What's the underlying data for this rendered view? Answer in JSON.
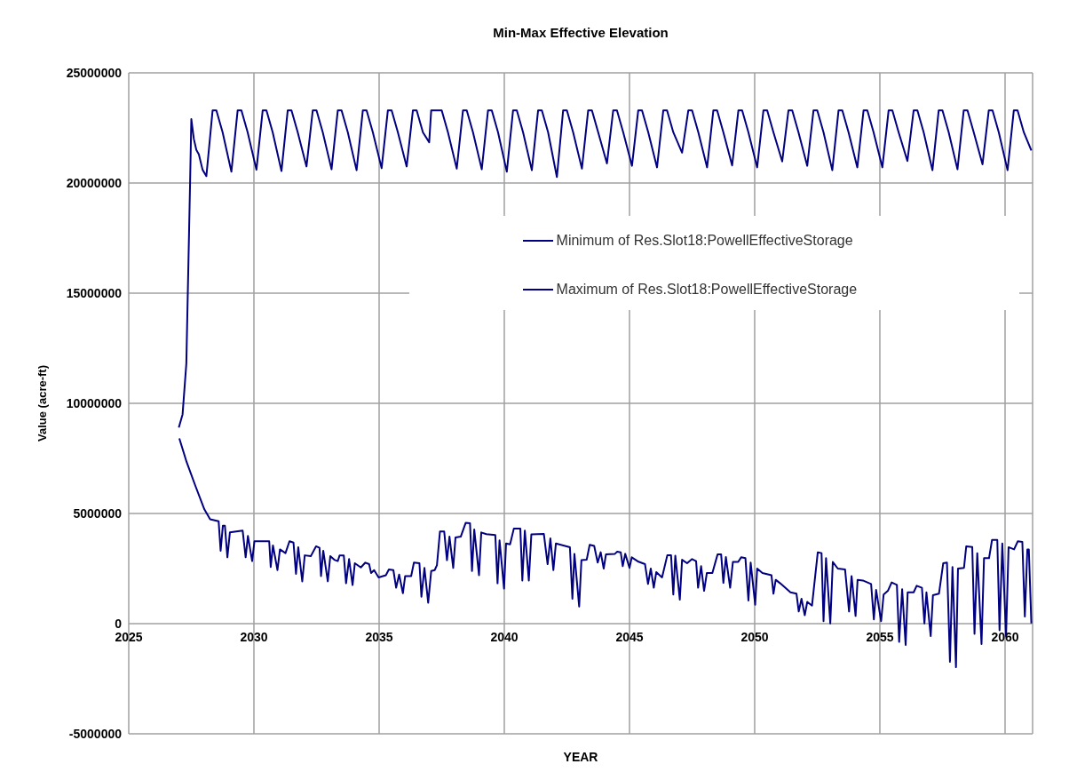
{
  "chart_data": {
    "type": "line",
    "title": "Min-Max Effective Elevation",
    "xlabel": "YEAR",
    "ylabel": "Value (acre-ft)",
    "xlim": [
      2025,
      2061.1
    ],
    "xticks": [
      2025,
      2030,
      2035,
      2040,
      2045,
      2050,
      2055,
      2060
    ],
    "ylim": [
      -5000000,
      25000000
    ],
    "yticks": [
      -5000000,
      0,
      5000000,
      10000000,
      15000000,
      20000000,
      25000000
    ],
    "grid": true,
    "legend": "top right",
    "series": [
      {
        "name": "Minimum of Res.Slot18:PowellEffectiveStorage",
        "color": "#000080",
        "x": [
          2027.02,
          2027.31,
          2027.66,
          2028.02,
          2028.25,
          2028.59,
          2028.67,
          2028.76,
          2028.84,
          2028.94,
          2029.04,
          2029.55,
          2029.67,
          2029.76,
          2029.93,
          2030.02,
          2030.61,
          2030.67,
          2030.76,
          2030.94,
          2031.04,
          2031.26,
          2031.42,
          2031.58,
          2031.68,
          2031.77,
          2031.93,
          2032.03,
          2032.27,
          2032.48,
          2032.62,
          2032.68,
          2032.77,
          2032.95,
          2033.05,
          2033.21,
          2033.35,
          2033.42,
          2033.59,
          2033.68,
          2033.8,
          2033.94,
          2034.03,
          2034.27,
          2034.45,
          2034.6,
          2034.68,
          2034.8,
          2034.98,
          2035.27,
          2035.39,
          2035.57,
          2035.68,
          2035.8,
          2035.95,
          2036.04,
          2036.28,
          2036.39,
          2036.61,
          2036.69,
          2036.81,
          2036.96,
          2037.08,
          2037.22,
          2037.31,
          2037.43,
          2037.6,
          2037.71,
          2037.81,
          2037.96,
          2038.05,
          2038.26,
          2038.46,
          2038.63,
          2038.71,
          2038.8,
          2038.99,
          2039.08,
          2039.28,
          2039.64,
          2039.73,
          2039.81,
          2039.99,
          2040.07,
          2040.23,
          2040.38,
          2040.64,
          2040.72,
          2040.82,
          2040.98,
          2041.08,
          2041.58,
          2041.73,
          2041.84,
          2041.96,
          2042.06,
          2042.62,
          2042.72,
          2042.8,
          2042.99,
          2043.08,
          2043.29,
          2043.41,
          2043.59,
          2043.73,
          2043.85,
          2043.97,
          2044.06,
          2044.42,
          2044.51,
          2044.65,
          2044.73,
          2044.83,
          2045,
          2045.09,
          2045.36,
          2045.62,
          2045.74,
          2045.85,
          2045.97,
          2046.07,
          2046.3,
          2046.51,
          2046.66,
          2046.75,
          2046.83,
          2047.01,
          2047.1,
          2047.3,
          2047.5,
          2047.66,
          2047.74,
          2047.86,
          2047.98,
          2048.09,
          2048.31,
          2048.52,
          2048.66,
          2048.75,
          2048.85,
          2049.02,
          2049.13,
          2049.34,
          2049.46,
          2049.63,
          2049.75,
          2049.84,
          2050.02,
          2050.1,
          2050.31,
          2050.67,
          2050.75,
          2050.84,
          2051.02,
          2051.26,
          2051.43,
          2051.67,
          2051.76,
          2051.87,
          2052,
          2052.1,
          2052.29,
          2052.52,
          2052.67,
          2052.75,
          2052.85,
          2053.02,
          2053.12,
          2053.32,
          2053.61,
          2053.77,
          2053.87,
          2054.03,
          2054.11,
          2054.32,
          2054.65,
          2054.76,
          2054.85,
          2055.05,
          2055.15,
          2055.32,
          2055.47,
          2055.68,
          2055.77,
          2055.89,
          2056.03,
          2056.11,
          2056.35,
          2056.47,
          2056.68,
          2056.78,
          2056.86,
          2057.03,
          2057.12,
          2057.36,
          2057.53,
          2057.68,
          2057.8,
          2057.9,
          2058.04,
          2058.12,
          2058.36,
          2058.45,
          2058.69,
          2058.78,
          2058.89,
          2059.06,
          2059.16,
          2059.36,
          2059.48,
          2059.69,
          2059.78,
          2059.89,
          2060.04,
          2060.14,
          2060.36,
          2060.51,
          2060.69,
          2060.79,
          2060.89,
          2060.95,
          2061.05
        ],
        "values": [
          8410000,
          7340000,
          6260000,
          5190000,
          4740000,
          4650000,
          3310000,
          4450000,
          4450000,
          3010000,
          4140000,
          4220000,
          3010000,
          3980000,
          2840000,
          3740000,
          3740000,
          2570000,
          3550000,
          2430000,
          3370000,
          3200000,
          3740000,
          3680000,
          2260000,
          3470000,
          1920000,
          3100000,
          3060000,
          3510000,
          3440000,
          2160000,
          3310000,
          1920000,
          3060000,
          2900000,
          2840000,
          3090000,
          3090000,
          1830000,
          2930000,
          1750000,
          2740000,
          2550000,
          2770000,
          2700000,
          2300000,
          2430000,
          2100000,
          2200000,
          2460000,
          2430000,
          1630000,
          2230000,
          1380000,
          2160000,
          2160000,
          2770000,
          2740000,
          1220000,
          2530000,
          950000,
          2390000,
          2430000,
          2660000,
          4180000,
          4180000,
          2880000,
          3950000,
          2530000,
          3910000,
          3950000,
          4580000,
          4560000,
          2390000,
          4270000,
          2200000,
          4140000,
          4060000,
          4020000,
          1830000,
          3780000,
          1590000,
          3640000,
          3600000,
          4310000,
          4310000,
          1960000,
          4220000,
          1960000,
          4050000,
          4070000,
          2700000,
          3870000,
          2430000,
          3640000,
          3470000,
          1130000,
          3170000,
          780000,
          2880000,
          2900000,
          3580000,
          3530000,
          2770000,
          3240000,
          2500000,
          3150000,
          3170000,
          3270000,
          3240000,
          2610000,
          3170000,
          2530000,
          3010000,
          2810000,
          2700000,
          1800000,
          2500000,
          1630000,
          2340000,
          2100000,
          3100000,
          3100000,
          1320000,
          3080000,
          1090000,
          2900000,
          2740000,
          2930000,
          2840000,
          1630000,
          2610000,
          1490000,
          2300000,
          2300000,
          3150000,
          3150000,
          1850000,
          3020000,
          1630000,
          2800000,
          2800000,
          3010000,
          2970000,
          1050000,
          2770000,
          860000,
          2500000,
          2300000,
          2200000,
          1360000,
          1990000,
          1830000,
          1590000,
          1420000,
          1360000,
          550000,
          1130000,
          380000,
          990000,
          820000,
          3240000,
          3200000,
          110000,
          2970000,
          10000,
          2800000,
          2500000,
          2460000,
          550000,
          2160000,
          350000,
          1990000,
          1960000,
          1800000,
          190000,
          1530000,
          110000,
          1320000,
          1490000,
          1870000,
          1760000,
          -830000,
          1560000,
          -970000,
          1420000,
          1420000,
          1720000,
          1630000,
          10000,
          1420000,
          -560000,
          1290000,
          1360000,
          2740000,
          2770000,
          -1730000,
          2570000,
          -1980000,
          2500000,
          2530000,
          3510000,
          3480000,
          -460000,
          3200000,
          -930000,
          2970000,
          2970000,
          3800000,
          3800000,
          -300000,
          3640000,
          -560000,
          3470000,
          3370000,
          3740000,
          3710000,
          320000,
          3370000,
          3370000,
          10000
        ]
      },
      {
        "name": "Maximum of Res.Slot18:PowellEffectiveStorage",
        "color": "#000080",
        "x": [
          2027,
          2027.15,
          2027.3,
          2027.45,
          2027.5,
          2027.6,
          2027.7,
          2027.8,
          2027.95,
          2028.1,
          2028.35,
          2028.5,
          2028.75,
          2029.1,
          2029.35,
          2029.5,
          2029.75,
          2030.1,
          2030.35,
          2030.5,
          2030.75,
          2031.1,
          2031.35,
          2031.5,
          2031.75,
          2032.1,
          2032.35,
          2032.5,
          2032.75,
          2033.1,
          2033.35,
          2033.5,
          2033.75,
          2034.1,
          2034.35,
          2034.5,
          2034.75,
          2035.1,
          2035.35,
          2035.5,
          2035.75,
          2036.1,
          2036.35,
          2036.5,
          2036.75,
          2037,
          2037.08,
          2037.5,
          2037.75,
          2038.1,
          2038.35,
          2038.5,
          2038.75,
          2039.1,
          2039.35,
          2039.5,
          2039.75,
          2040.1,
          2040.35,
          2040.5,
          2040.75,
          2041.1,
          2041.35,
          2041.5,
          2041.75,
          2042.1,
          2042.35,
          2042.5,
          2042.75,
          2043.1,
          2043.35,
          2043.5,
          2043.75,
          2044.1,
          2044.35,
          2044.5,
          2044.75,
          2045.1,
          2045.35,
          2045.5,
          2045.75,
          2046.1,
          2046.35,
          2046.5,
          2046.75,
          2047.1,
          2047.35,
          2047.5,
          2047.75,
          2048.1,
          2048.35,
          2048.5,
          2048.75,
          2049.1,
          2049.35,
          2049.5,
          2049.75,
          2050.1,
          2050.35,
          2050.5,
          2050.75,
          2051.1,
          2051.35,
          2051.5,
          2051.75,
          2052.1,
          2052.35,
          2052.5,
          2052.75,
          2053.1,
          2053.35,
          2053.5,
          2053.75,
          2054.1,
          2054.35,
          2054.5,
          2054.75,
          2055.1,
          2055.35,
          2055.5,
          2055.75,
          2056.1,
          2056.35,
          2056.5,
          2056.75,
          2057.1,
          2057.35,
          2057.5,
          2057.75,
          2058.1,
          2058.35,
          2058.5,
          2058.75,
          2059.1,
          2059.35,
          2059.5,
          2059.75,
          2060.1,
          2060.35,
          2060.5,
          2060.75,
          2061.05
        ],
        "values": [
          8900000,
          9500000,
          11800000,
          20000000,
          22900000,
          22000000,
          21500000,
          21300000,
          20600000,
          20310000,
          23300000,
          23300000,
          22300000,
          20510000,
          23300000,
          23300000,
          22300000,
          20600000,
          23300000,
          23300000,
          22300000,
          20540000,
          23300000,
          23300000,
          22300000,
          20750000,
          23300000,
          23300000,
          22300000,
          20620000,
          23300000,
          23300000,
          22300000,
          20580000,
          23300000,
          23300000,
          22300000,
          20670000,
          23300000,
          23300000,
          22300000,
          20750000,
          23300000,
          23300000,
          22300000,
          21850000,
          23300000,
          23300000,
          22300000,
          20650000,
          23300000,
          23300000,
          22300000,
          20620000,
          23300000,
          23300000,
          22300000,
          20510000,
          23300000,
          23300000,
          22300000,
          20580000,
          23300000,
          23300000,
          22300000,
          20270000,
          23300000,
          23300000,
          22300000,
          20650000,
          23300000,
          23300000,
          22300000,
          20890000,
          23300000,
          23300000,
          22300000,
          20780000,
          23300000,
          23300000,
          22300000,
          20710000,
          23300000,
          23300000,
          22300000,
          21380000,
          23300000,
          23300000,
          22300000,
          20710000,
          23300000,
          23300000,
          22300000,
          20800000,
          23300000,
          23300000,
          22300000,
          20710000,
          23300000,
          23300000,
          22300000,
          20980000,
          23300000,
          23300000,
          22300000,
          20780000,
          23300000,
          23300000,
          22300000,
          20580000,
          23300000,
          23300000,
          22300000,
          20710000,
          23300000,
          23300000,
          22300000,
          20710000,
          23300000,
          23300000,
          22300000,
          21000000,
          23300000,
          23300000,
          22300000,
          20580000,
          23300000,
          23300000,
          22300000,
          20620000,
          23300000,
          23300000,
          22300000,
          20850000,
          23300000,
          23300000,
          22300000,
          20580000,
          23300000,
          23300000,
          22300000,
          21480000
        ]
      }
    ]
  }
}
